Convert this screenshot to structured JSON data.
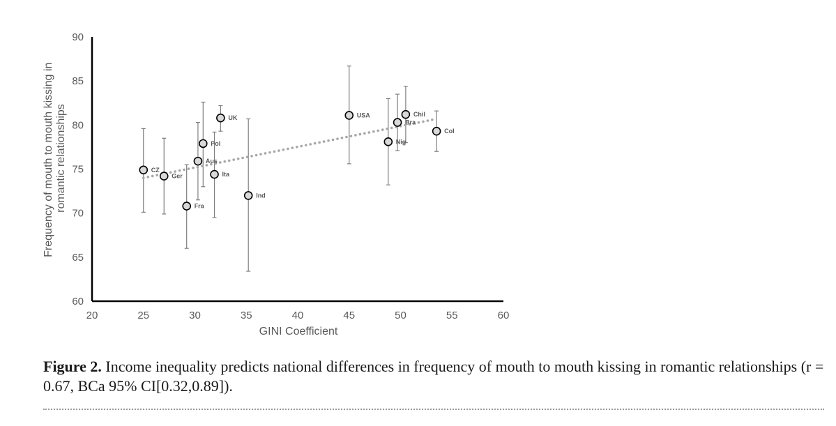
{
  "chart_data": {
    "type": "scatter",
    "xlabel": "GINI Coefficient",
    "ylabel_lines": [
      "Frequency of mouth to mouth kissing in",
      "romantic relationships"
    ],
    "xlim": [
      20,
      60
    ],
    "ylim": [
      60,
      90
    ],
    "xticks": [
      20,
      25,
      30,
      35,
      40,
      45,
      50,
      55,
      60
    ],
    "yticks": [
      60,
      65,
      70,
      75,
      80,
      85,
      90
    ],
    "grid": false,
    "trendline": {
      "style": "dotted",
      "color": "#a6a6a6",
      "x": [
        25,
        53.5
      ],
      "y": [
        74.0,
        80.7
      ]
    },
    "points": [
      {
        "label": "CZ",
        "x": 25.0,
        "y": 74.9,
        "err_low": 70.1,
        "err_high": 79.6
      },
      {
        "label": "Ger",
        "x": 27.0,
        "y": 74.2,
        "err_low": 69.9,
        "err_high": 78.5
      },
      {
        "label": "Fra",
        "x": 29.2,
        "y": 70.8,
        "err_low": 66.0,
        "err_high": 75.5
      },
      {
        "label": "Aus",
        "x": 30.3,
        "y": 75.9,
        "err_low": 71.5,
        "err_high": 80.3
      },
      {
        "label": "Pol",
        "x": 30.8,
        "y": 77.9,
        "err_low": 73.0,
        "err_high": 82.6
      },
      {
        "label": "Ita",
        "x": 31.9,
        "y": 74.4,
        "err_low": 69.5,
        "err_high": 79.2
      },
      {
        "label": "UK",
        "x": 32.5,
        "y": 80.8,
        "err_low": 79.3,
        "err_high": 82.2
      },
      {
        "label": "Ind",
        "x": 35.2,
        "y": 72.0,
        "err_low": 63.4,
        "err_high": 80.7
      },
      {
        "label": "USA",
        "x": 45.0,
        "y": 81.1,
        "err_low": 75.6,
        "err_high": 86.7
      },
      {
        "label": "Nig",
        "x": 48.8,
        "y": 78.1,
        "err_low": 73.2,
        "err_high": 83.0
      },
      {
        "label": "Bra",
        "x": 49.7,
        "y": 80.3,
        "err_low": 77.1,
        "err_high": 83.5
      },
      {
        "label": "Chil",
        "x": 50.5,
        "y": 81.2,
        "err_low": 78.0,
        "err_high": 84.4
      },
      {
        "label": "Col",
        "x": 53.5,
        "y": 79.3,
        "err_low": 77.0,
        "err_high": 81.6
      }
    ]
  },
  "caption": {
    "figure_number": "Figure 2.",
    "text": "Income inequality predicts national differences in frequency of mouth to mouth kissing in romantic relationships (r = 0.67, BCa 95% CI[0.32,0.89])."
  }
}
